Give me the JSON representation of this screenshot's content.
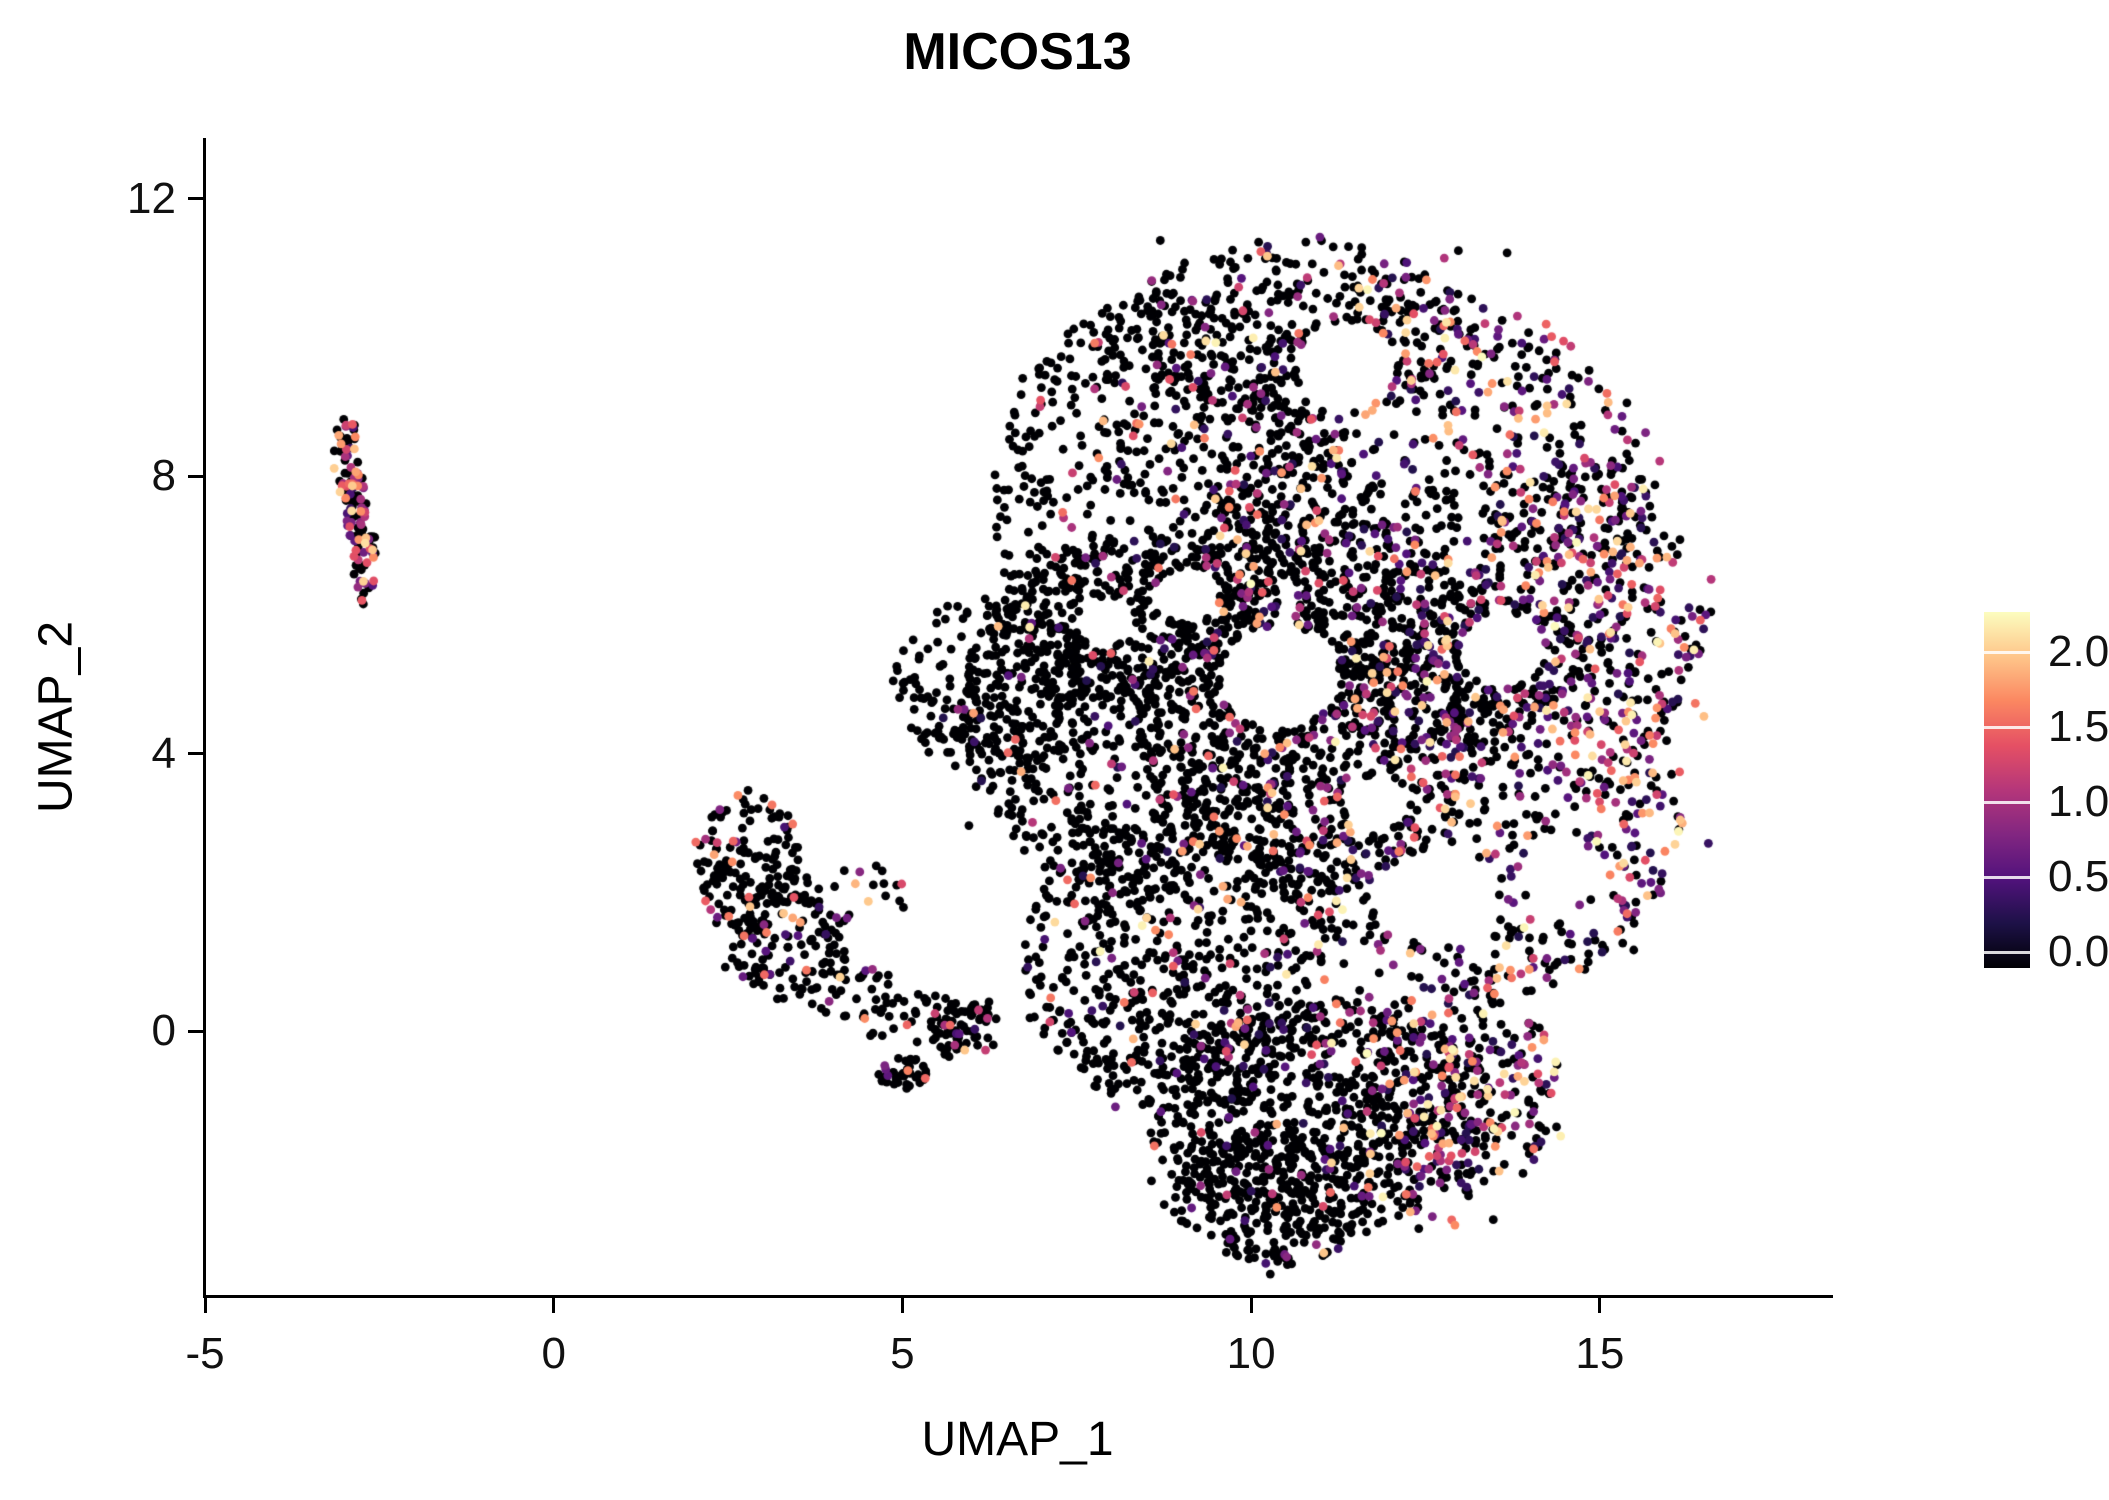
{
  "chart_data": {
    "type": "scatter",
    "title": "MICOS13",
    "xlabel": "UMAP_1",
    "ylabel": "UMAP_2",
    "xlim": [
      -5,
      18.3
    ],
    "ylim": [
      -3.8,
      12.85
    ],
    "grid": false,
    "legend_position": "right",
    "point_color_meaning": "gene expression level of MICOS13 per cell",
    "xticks": [
      {
        "value": -5,
        "label": "-5"
      },
      {
        "value": 0,
        "label": "0"
      },
      {
        "value": 5,
        "label": "5"
      },
      {
        "value": 10,
        "label": "10"
      },
      {
        "value": 15,
        "label": "15"
      }
    ],
    "yticks": [
      {
        "value": 0,
        "label": "0"
      },
      {
        "value": 4,
        "label": "4"
      },
      {
        "value": 8,
        "label": "8"
      },
      {
        "value": 12,
        "label": "12"
      }
    ],
    "colorbar": {
      "vmin": 0.0,
      "vmax": 2.2,
      "ticks": [
        {
          "value": 2.0,
          "label": "2.0"
        },
        {
          "value": 1.5,
          "label": "1.5"
        },
        {
          "value": 1.0,
          "label": "1.0"
        },
        {
          "value": 0.5,
          "label": "0.5"
        },
        {
          "value": 0.0,
          "label": "0.0"
        }
      ],
      "colormap": "magma",
      "stops": [
        "#000004",
        "#1d1147",
        "#51127c",
        "#822681",
        "#b5367a",
        "#e55064",
        "#fb8761",
        "#fec68a",
        "#fcfdbf"
      ]
    },
    "clusters": [
      {
        "name": "left-small-cluster",
        "seed": 101,
        "count": 140,
        "ellipses": [
          {
            "cx": -2.95,
            "cy": 8.3,
            "rx": 0.22,
            "ry": 0.55,
            "w": 1.1
          },
          {
            "cx": -2.85,
            "cy": 7.55,
            "rx": 0.18,
            "ry": 0.5,
            "w": 1.0
          },
          {
            "cx": -2.7,
            "cy": 6.75,
            "rx": 0.2,
            "ry": 0.6,
            "w": 1.0
          }
        ],
        "holes": [],
        "colored": {
          "base": 0.5,
          "scale": 0,
          "x0": 0,
          "x1": 1,
          "pow": 1,
          "overrides": []
        },
        "value": {
          "vmin": 0.4,
          "vmax": 2.05,
          "pow": 1.1
        }
      },
      {
        "name": "mid-left-cluster",
        "seed": 202,
        "count": 470,
        "ellipses": [
          {
            "cx": 2.8,
            "cy": 2.45,
            "rx": 0.75,
            "ry": 1.05,
            "w": 2.6
          },
          {
            "cx": 3.3,
            "cy": 1.3,
            "rx": 0.75,
            "ry": 0.85,
            "w": 2.0
          },
          {
            "cx": 4.2,
            "cy": 1.9,
            "rx": 1.0,
            "ry": 0.6,
            "w": 0.7
          },
          {
            "cx": 4.15,
            "cy": 0.7,
            "rx": 0.7,
            "ry": 0.5,
            "w": 0.8
          },
          {
            "cx": 5.1,
            "cy": 0.2,
            "rx": 0.85,
            "ry": 0.4,
            "w": 1.0
          },
          {
            "cx": 5.9,
            "cy": 0.0,
            "rx": 0.5,
            "ry": 0.45,
            "w": 1.4
          },
          {
            "cx": 5.0,
            "cy": -0.6,
            "rx": 0.35,
            "ry": 0.25,
            "w": 0.9
          }
        ],
        "holes": [
          {
            "cx": 4.6,
            "cy": 1.4,
            "rx": 0.45,
            "ry": 0.45
          }
        ],
        "colored": {
          "base": 0.15,
          "scale": 0,
          "x0": 0,
          "x1": 1,
          "pow": 1,
          "overrides": []
        },
        "value": {
          "vmin": 0.35,
          "vmax": 2.0,
          "pow": 1.2
        }
      },
      {
        "name": "main-cluster",
        "seed": 303,
        "count": 6300,
        "ellipses": [
          {
            "cx": 8.9,
            "cy": 7.6,
            "rx": 2.6,
            "ry": 3.1,
            "w": 2.4
          },
          {
            "cx": 10.6,
            "cy": 10.1,
            "rx": 2.4,
            "ry": 1.35,
            "w": 1.1
          },
          {
            "cx": 12.5,
            "cy": 7.4,
            "rx": 3.2,
            "ry": 3.3,
            "w": 3.0
          },
          {
            "cx": 14.8,
            "cy": 6.0,
            "rx": 1.75,
            "ry": 2.3,
            "w": 1.2
          },
          {
            "cx": 8.3,
            "cy": 4.6,
            "rx": 2.5,
            "ry": 2.6,
            "w": 2.4
          },
          {
            "cx": 6.4,
            "cy": 5.0,
            "rx": 1.55,
            "ry": 1.3,
            "w": 0.7
          },
          {
            "cx": 10.9,
            "cy": 4.8,
            "rx": 2.6,
            "ry": 2.8,
            "w": 2.4
          },
          {
            "cx": 13.2,
            "cy": 3.3,
            "rx": 3.0,
            "ry": 2.9,
            "w": 2.4
          },
          {
            "cx": 8.9,
            "cy": 1.0,
            "rx": 2.2,
            "ry": 2.1,
            "w": 1.9
          },
          {
            "cx": 11.0,
            "cy": -1.2,
            "rx": 2.5,
            "ry": 1.7,
            "w": 2.1
          },
          {
            "cx": 12.9,
            "cy": -0.9,
            "rx": 1.6,
            "ry": 1.5,
            "w": 1.0
          },
          {
            "cx": 10.3,
            "cy": -2.4,
            "rx": 1.4,
            "ry": 1.0,
            "w": 0.8
          }
        ],
        "holes": [
          {
            "cx": 11.4,
            "cy": 9.6,
            "rx": 0.7,
            "ry": 0.65
          },
          {
            "cx": 10.4,
            "cy": 5.1,
            "rx": 0.85,
            "ry": 0.75
          },
          {
            "cx": 12.7,
            "cy": 1.95,
            "rx": 0.85,
            "ry": 0.7
          },
          {
            "cx": 13.6,
            "cy": 5.5,
            "rx": 0.6,
            "ry": 0.55
          },
          {
            "cx": 9.1,
            "cy": 6.3,
            "rx": 0.45,
            "ry": 0.4
          },
          {
            "cx": 14.4,
            "cy": 2.3,
            "rx": 0.5,
            "ry": 0.6
          },
          {
            "cx": 7.9,
            "cy": 5.9,
            "rx": 0.4,
            "ry": 0.35
          },
          {
            "cx": 11.8,
            "cy": 3.3,
            "rx": 0.45,
            "ry": 0.4
          }
        ],
        "colored": {
          "base": 0.05,
          "scale": 0.55,
          "x0": 6,
          "x1": 16,
          "pow": 1.8,
          "overrides": [
            {
              "ymax": -0.6,
              "mult": 0.4
            },
            {
              "ymax": -0.6,
              "xmin": 12.2,
              "p": 0.45
            }
          ]
        },
        "value": {
          "vmin": 0.3,
          "vmax": 2.2,
          "pow": 1.6
        }
      }
    ]
  }
}
